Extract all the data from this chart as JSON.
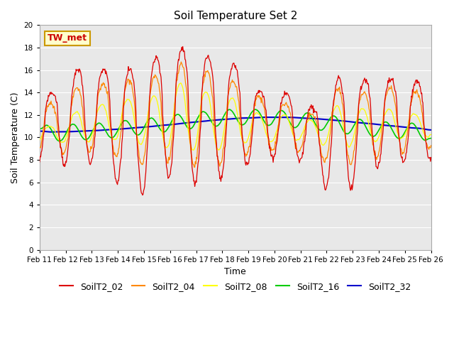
{
  "title": "Soil Temperature Set 2",
  "xlabel": "Time",
  "ylabel": "Soil Temperature (C)",
  "ylim": [
    0,
    20
  ],
  "yticks": [
    0,
    2,
    4,
    6,
    8,
    10,
    12,
    14,
    16,
    18,
    20
  ],
  "x_labels": [
    "Feb 11",
    "Feb 12",
    "Feb 13",
    "Feb 14",
    "Feb 15",
    "Feb 16",
    "Feb 17",
    "Feb 18",
    "Feb 19",
    "Feb 20",
    "Feb 21",
    "Feb 22",
    "Feb 23",
    "Feb 24",
    "Feb 25",
    "Feb 26"
  ],
  "annotation_text": "TW_met",
  "annotation_color": "#cc0000",
  "annotation_bg": "#ffffcc",
  "annotation_border": "#cc9900",
  "series_colors": {
    "SoilT2_02": "#dd0000",
    "SoilT2_04": "#ff8800",
    "SoilT2_08": "#ffff00",
    "SoilT2_16": "#00cc00",
    "SoilT2_32": "#0000cc"
  },
  "bg_color": "#e8e8e8",
  "grid_color": "#ffffff",
  "num_points": 720,
  "days": 15
}
